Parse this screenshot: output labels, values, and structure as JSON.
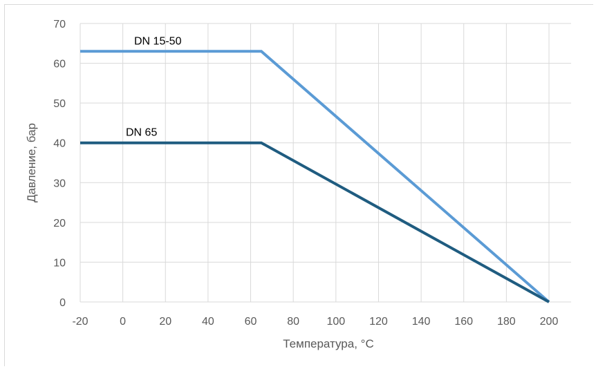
{
  "chart_data": {
    "type": "line",
    "xlabel": "Температура, °C",
    "ylabel": "Давление, бар",
    "xlim": [
      -20,
      200
    ],
    "ylim": [
      0,
      70
    ],
    "x_ticks": [
      -20,
      0,
      20,
      40,
      60,
      80,
      100,
      120,
      140,
      160,
      180,
      200
    ],
    "y_ticks": [
      0,
      10,
      20,
      30,
      40,
      50,
      60,
      70
    ],
    "grid": true,
    "legend": "none",
    "series": [
      {
        "name": "DN 15-50",
        "color": "#5b9bd5",
        "points": [
          [
            -20,
            63
          ],
          [
            65,
            63
          ],
          [
            200,
            0
          ]
        ]
      },
      {
        "name": "DN 65",
        "color": "#1f5c80",
        "points": [
          [
            -20,
            40
          ],
          [
            65,
            40
          ],
          [
            200,
            0
          ]
        ]
      }
    ]
  }
}
